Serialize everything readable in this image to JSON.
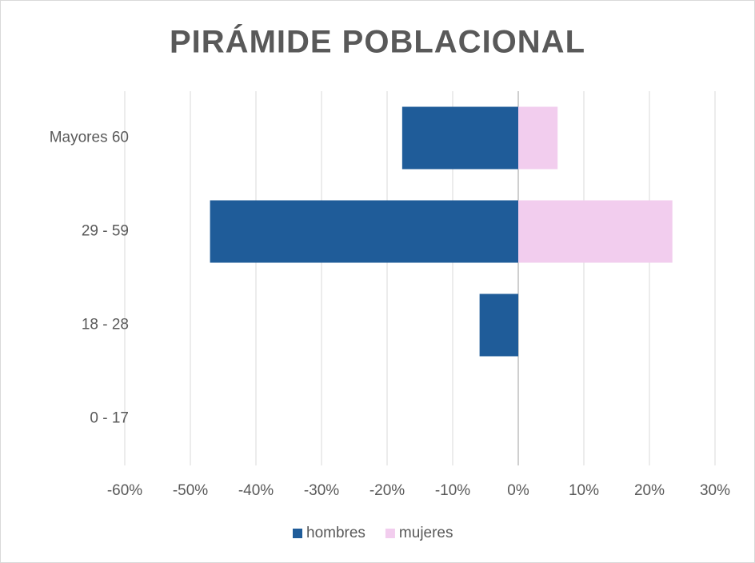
{
  "chart_data": {
    "type": "bar",
    "orientation": "horizontal",
    "title": "PIRÁMIDE POBLACIONAL",
    "categories": [
      "Mayores 60",
      "29 - 59",
      "18 - 28",
      "0 - 17"
    ],
    "series": [
      {
        "name": "hombres",
        "color": "#1f5c99",
        "values": [
          -17.7,
          -47,
          -5.9,
          0
        ]
      },
      {
        "name": "mujeres",
        "color": "#f2cdee",
        "values": [
          6,
          23.5,
          0,
          0
        ]
      }
    ],
    "xlim": [
      -60,
      30
    ],
    "xticks": [
      {
        "value": -60,
        "label": "-60%"
      },
      {
        "value": -50,
        "label": "-50%"
      },
      {
        "value": -40,
        "label": "-40%"
      },
      {
        "value": -30,
        "label": "-30%"
      },
      {
        "value": -20,
        "label": "-20%"
      },
      {
        "value": -10,
        "label": "-10%"
      },
      {
        "value": 0,
        "label": "0%"
      },
      {
        "value": 10,
        "label": "10%"
      },
      {
        "value": 20,
        "label": "20%"
      },
      {
        "value": 30,
        "label": "30%"
      }
    ],
    "grid": true,
    "legend": "bottom"
  }
}
